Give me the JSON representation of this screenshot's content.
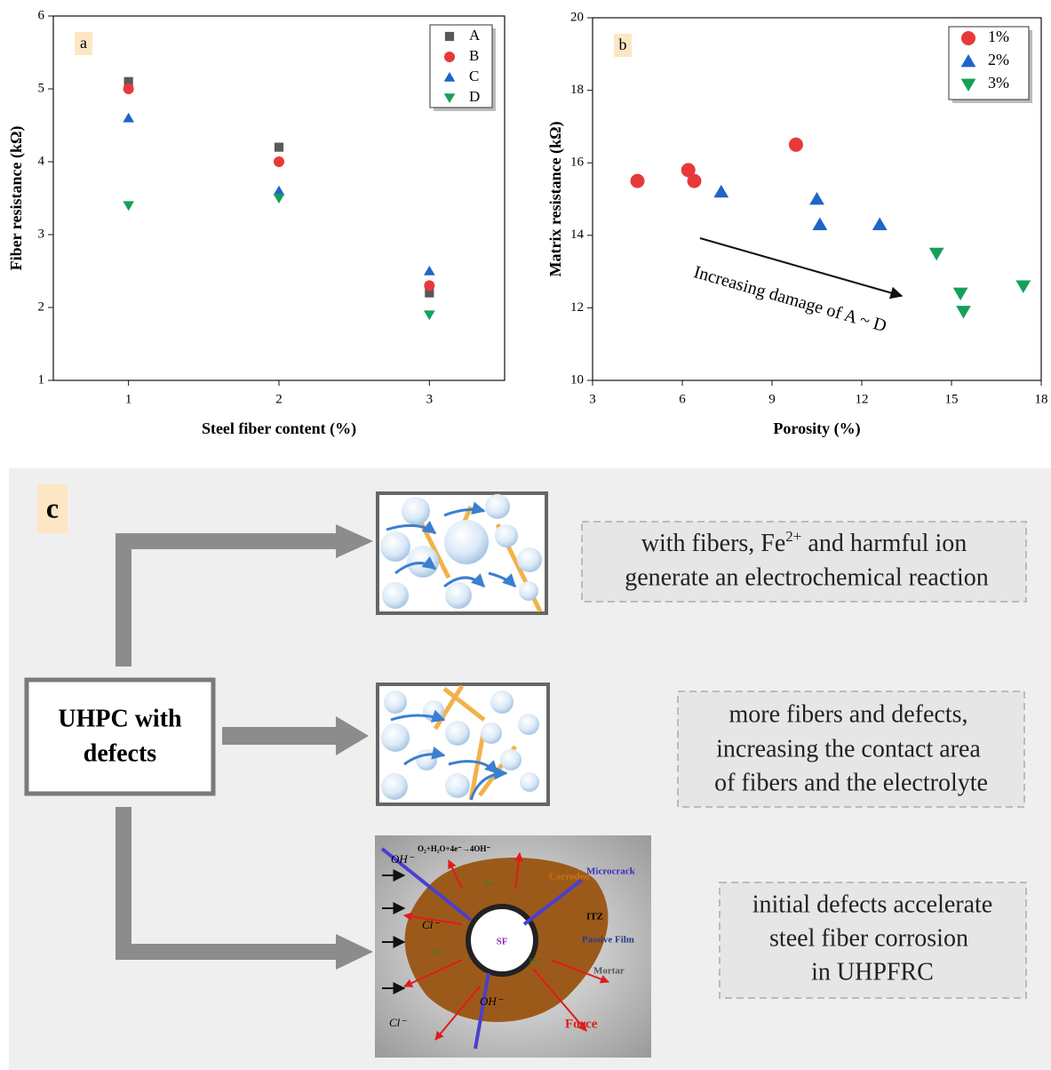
{
  "chart_data": [
    {
      "type": "scatter",
      "panel_label": "a",
      "x_label": "Steel fiber content (%)",
      "y_label": "Fiber resistance (kΩ)",
      "x": [
        1,
        2,
        3
      ],
      "xlim": [
        0.5,
        3.5
      ],
      "xticks": [
        1,
        2,
        3
      ],
      "ylim": [
        1,
        6
      ],
      "yticks": [
        1,
        2,
        3,
        4,
        5,
        6
      ],
      "legend": "upper right",
      "series": [
        {
          "name": "A",
          "color": "#595959",
          "marker": "square",
          "values": [
            5.1,
            4.2,
            2.2
          ]
        },
        {
          "name": "B",
          "color": "#e8393a",
          "marker": "circle",
          "values": [
            5.0,
            4.0,
            2.3
          ]
        },
        {
          "name": "C",
          "color": "#1f64c8",
          "marker": "triangle-up",
          "values": [
            4.6,
            3.6,
            2.5
          ]
        },
        {
          "name": "D",
          "color": "#16a05a",
          "marker": "triangle-down",
          "values": [
            3.4,
            3.5,
            1.9
          ]
        }
      ]
    },
    {
      "type": "scatter",
      "panel_label": "b",
      "x_label": "Porosity (%)",
      "y_label": "Matrix resistance (kΩ)",
      "xlim": [
        3,
        18
      ],
      "xticks": [
        3,
        6,
        9,
        12,
        15,
        18
      ],
      "ylim": [
        10,
        20
      ],
      "yticks": [
        10,
        12,
        14,
        16,
        18,
        20
      ],
      "legend": "upper right",
      "annotation": "Increasing damage of A ~ D",
      "series": [
        {
          "name": "1%",
          "color": "#e8393a",
          "marker": "circle",
          "x": [
            4.5,
            6.2,
            6.4,
            9.8
          ],
          "values": [
            15.5,
            15.8,
            15.5,
            16.5
          ]
        },
        {
          "name": "2%",
          "color": "#1f64c8",
          "marker": "triangle-up",
          "x": [
            7.3,
            10.5,
            10.6,
            12.6
          ],
          "values": [
            15.2,
            15.0,
            14.3,
            14.3
          ]
        },
        {
          "name": "3%",
          "color": "#16a05a",
          "marker": "triangle-down",
          "x": [
            14.5,
            15.3,
            15.4,
            17.4
          ],
          "values": [
            13.5,
            12.4,
            11.9,
            12.6
          ]
        }
      ]
    }
  ],
  "panel_c": {
    "label": "c",
    "source": [
      "UHPC with",
      "defects"
    ],
    "notes": [
      {
        "lines": [
          [
            "with fibers, Fe",
            "2+",
            " and harmful ion"
          ],
          [
            "generate an electrochemical reaction"
          ]
        ]
      },
      {
        "lines": [
          [
            "more fibers and defects,"
          ],
          [
            "increasing the contact area"
          ],
          [
            "of fibers and the electrolyte"
          ]
        ]
      },
      {
        "lines": [
          [
            "initial defects  accelerate"
          ],
          [
            "steel fiber corrosion"
          ],
          [
            "in UHPFRC"
          ]
        ]
      }
    ],
    "corrosion": {
      "reaction": "O₂+H₂O+4e⁻→4OH⁻",
      "oh": "OH⁻",
      "cl": "Cl⁻",
      "corroded": "Corroded",
      "microcrack": "Microcrack",
      "itz": "ITZ",
      "passive_film": "Passive Film",
      "mortar": "Mortar",
      "sf": "SF",
      "force": "Force",
      "fe": "Fe²⁺"
    }
  }
}
